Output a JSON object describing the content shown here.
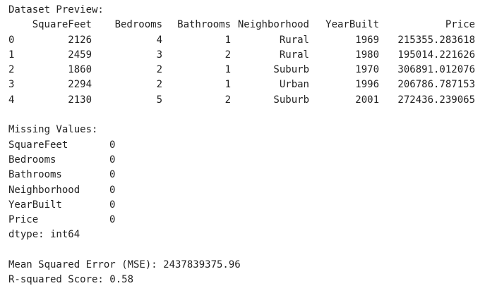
{
  "preview": {
    "title": "Dataset Preview:",
    "columns": [
      "SquareFeet",
      "Bedrooms",
      "Bathrooms",
      "Neighborhood",
      "YearBuilt",
      "Price"
    ],
    "rows": [
      {
        "index": "0",
        "cells": [
          "2126",
          "4",
          "1",
          "Rural",
          "1969",
          "215355.283618"
        ]
      },
      {
        "index": "1",
        "cells": [
          "2459",
          "3",
          "2",
          "Rural",
          "1980",
          "195014.221626"
        ]
      },
      {
        "index": "2",
        "cells": [
          "1860",
          "2",
          "1",
          "Suburb",
          "1970",
          "306891.012076"
        ]
      },
      {
        "index": "3",
        "cells": [
          "2294",
          "2",
          "1",
          "Urban",
          "1996",
          "206786.787153"
        ]
      },
      {
        "index": "4",
        "cells": [
          "2130",
          "5",
          "2",
          "Suburb",
          "2001",
          "272436.239065"
        ]
      }
    ]
  },
  "missing": {
    "title": "Missing Values:",
    "items": [
      {
        "name": "SquareFeet",
        "value": "0"
      },
      {
        "name": "Bedrooms",
        "value": "0"
      },
      {
        "name": "Bathrooms",
        "value": "0"
      },
      {
        "name": "Neighborhood",
        "value": "0"
      },
      {
        "name": "YearBuilt",
        "value": "0"
      },
      {
        "name": "Price",
        "value": "0"
      }
    ],
    "dtype": "dtype: int64"
  },
  "metrics": {
    "mse": "Mean Squared Error (MSE): 2437839375.96",
    "r2": "R-squared Score: 0.58"
  }
}
